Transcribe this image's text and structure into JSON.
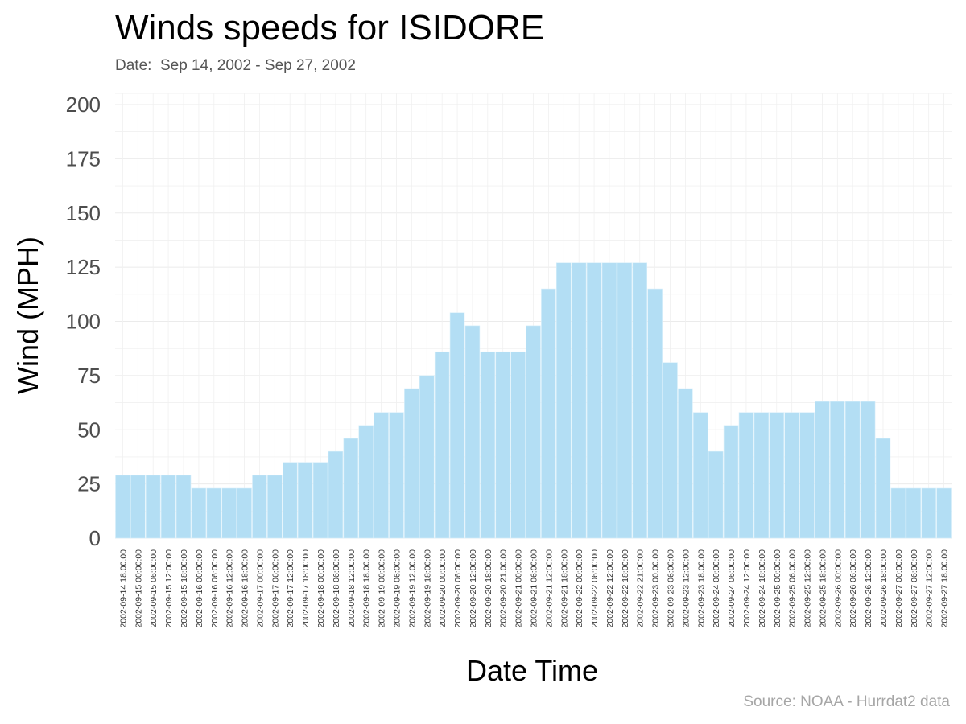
{
  "chart_data": {
    "type": "bar",
    "title": "Winds speeds for ISIDORE",
    "subtitle": "Date:  Sep 14, 2002 - Sep 27, 2002",
    "caption": "Source: NOAA - Hurrdat2 data",
    "xlabel": "Date Time",
    "ylabel": "Wind (MPH)",
    "ylim": [
      0,
      200
    ],
    "yticks": [
      0,
      25,
      50,
      75,
      100,
      125,
      150,
      175,
      200
    ],
    "grid": true,
    "bar_color": "#b3def4",
    "categories": [
      "2002-09-14 18:00:00",
      "2002-09-15 00:00:00",
      "2002-09-15 06:00:00",
      "2002-09-15 12:00:00",
      "2002-09-15 18:00:00",
      "2002-09-16 00:00:00",
      "2002-09-16 06:00:00",
      "2002-09-16 12:00:00",
      "2002-09-16 18:00:00",
      "2002-09-17 00:00:00",
      "2002-09-17 06:00:00",
      "2002-09-17 12:00:00",
      "2002-09-17 18:00:00",
      "2002-09-18 00:00:00",
      "2002-09-18 06:00:00",
      "2002-09-18 12:00:00",
      "2002-09-18 18:00:00",
      "2002-09-19 00:00:00",
      "2002-09-19 06:00:00",
      "2002-09-19 12:00:00",
      "2002-09-19 18:00:00",
      "2002-09-20 00:00:00",
      "2002-09-20 06:00:00",
      "2002-09-20 12:00:00",
      "2002-09-20 18:00:00",
      "2002-09-20 21:00:00",
      "2002-09-21 00:00:00",
      "2002-09-21 06:00:00",
      "2002-09-21 12:00:00",
      "2002-09-21 18:00:00",
      "2002-09-22 00:00:00",
      "2002-09-22 06:00:00",
      "2002-09-22 12:00:00",
      "2002-09-22 18:00:00",
      "2002-09-22 21:00:00",
      "2002-09-23 00:00:00",
      "2002-09-23 06:00:00",
      "2002-09-23 12:00:00",
      "2002-09-23 18:00:00",
      "2002-09-24 00:00:00",
      "2002-09-24 06:00:00",
      "2002-09-24 12:00:00",
      "2002-09-24 18:00:00",
      "2002-09-25 00:00:00",
      "2002-09-25 06:00:00",
      "2002-09-25 12:00:00",
      "2002-09-25 18:00:00",
      "2002-09-26 00:00:00",
      "2002-09-26 06:00:00",
      "2002-09-26 12:00:00",
      "2002-09-26 18:00:00",
      "2002-09-27 00:00:00",
      "2002-09-27 06:00:00",
      "2002-09-27 12:00:00",
      "2002-09-27 18:00:00"
    ],
    "values": [
      29,
      29,
      29,
      29,
      29,
      23,
      23,
      23,
      23,
      29,
      29,
      35,
      35,
      35,
      40,
      46,
      52,
      58,
      58,
      69,
      75,
      86,
      104,
      98,
      86,
      86,
      86,
      98,
      115,
      127,
      127,
      127,
      127,
      127,
      127,
      115,
      81,
      69,
      58,
      40,
      52,
      58,
      58,
      58,
      58,
      58,
      63,
      63,
      63,
      63,
      46,
      23,
      23,
      23,
      23
    ]
  }
}
